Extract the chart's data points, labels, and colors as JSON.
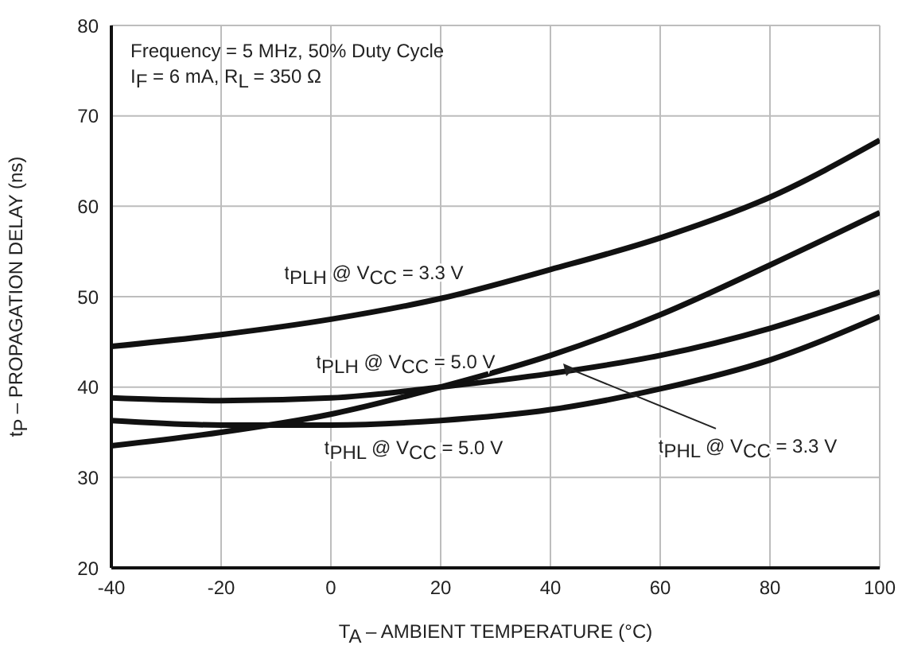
{
  "chart_data": {
    "type": "line",
    "xlabel": "T$_{A}$ – AMBIENT TEMPERATURE (°C)",
    "ylabel": "t$_{P}$ – PROPAGATION DELAY (ns)",
    "annotations": [
      "Frequency = 5 MHz, 50% Duty Cycle",
      "I$_{F}$ = 6 mA, R$_{L}$ = 350 Ω"
    ],
    "x": [
      -40,
      -20,
      0,
      20,
      40,
      60,
      80,
      100
    ],
    "series": [
      {
        "name": "t$_{PLH}$ @ V$_{CC}$ = 3.3 V",
        "color": "#111111",
        "values": [
          44.5,
          45.8,
          47.5,
          49.8,
          53,
          56.5,
          61,
          67.3
        ]
      },
      {
        "name": "t$_{PLH}$ @ V$_{CC}$ = 5.0 V",
        "color": "#111111",
        "values": [
          33.5,
          35,
          37,
          40,
          43.5,
          48,
          53.5,
          59.3
        ]
      },
      {
        "name": "t$_{PHL}$ @ V$_{CC}$ = 5.0 V",
        "color": "#111111",
        "values": [
          36.3,
          35.8,
          35.8,
          36.3,
          37.5,
          39.8,
          43,
          47.8
        ]
      },
      {
        "name": "t$_{PHL}$ @ V$_{CC}$ = 3.3 V",
        "color": "#111111",
        "values": [
          38.8,
          38.5,
          38.8,
          40,
          41.5,
          43.5,
          46.5,
          50.5
        ]
      }
    ],
    "xlim": [
      -40,
      100
    ],
    "xticks": [
      -40,
      -20,
      0,
      20,
      40,
      60,
      80,
      100
    ],
    "ylim": [
      20,
      80
    ],
    "yticks": [
      20,
      30,
      40,
      50,
      60,
      70,
      80
    ],
    "grid": true
  }
}
